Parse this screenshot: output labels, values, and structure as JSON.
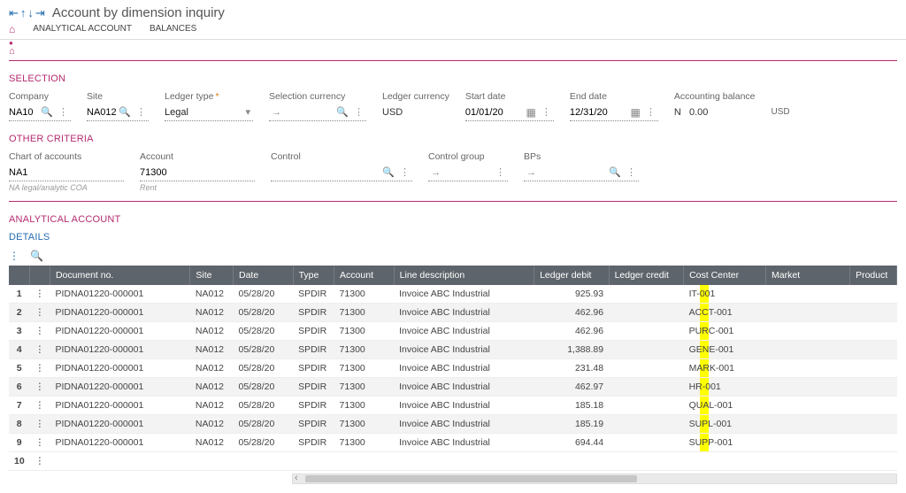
{
  "colors": {
    "accent": "#b52b6f",
    "link": "#246baf",
    "th_bg": "#5e646b"
  },
  "header": {
    "title": "Account by dimension inquiry"
  },
  "tabs": {
    "t1": "ANALYTICAL ACCOUNT",
    "t2": "BALANCES"
  },
  "selection": {
    "heading": "SELECTION",
    "company_label": "Company",
    "company": "NA10",
    "site_label": "Site",
    "site": "NA012",
    "ledger_type_label": "Ledger type",
    "ledger_type": "Legal",
    "sel_currency_label": "Selection currency",
    "sel_currency": "",
    "ledger_currency_label": "Ledger currency",
    "ledger_currency": "USD",
    "start_label": "Start date",
    "start": "01/01/20",
    "end_label": "End date",
    "end": "12/31/20",
    "accbal_label": "Accounting balance",
    "accbal_flag": "N",
    "accbal_val": "0.00",
    "accbal_cur": "USD"
  },
  "other": {
    "heading": "OTHER CRITERIA",
    "coa_label": "Chart of accounts",
    "coa": "NA1",
    "coa_sub": "NA legal/analytic COA",
    "acct_label": "Account",
    "acct": "71300",
    "acct_sub": "Rent",
    "control_label": "Control",
    "control": "",
    "cgroup_label": "Control group",
    "cgroup": "",
    "bps_label": "BPs",
    "bps": ""
  },
  "analytical": {
    "heading": "ANALYTICAL ACCOUNT"
  },
  "details": {
    "heading": "DETAILS",
    "cols": {
      "doc": "Document no.",
      "site": "Site",
      "date": "Date",
      "type": "Type",
      "acct": "Account",
      "desc": "Line description",
      "debit": "Ledger debit",
      "credit": "Ledger credit",
      "cc": "Cost Center",
      "market": "Market",
      "product": "Product"
    },
    "rows": [
      {
        "n": "1",
        "doc": "PIDNA01220-000001",
        "site": "NA012",
        "date": "05/28/20",
        "type": "SPDIR",
        "acct": "71300",
        "desc": "Invoice ABC Industrial",
        "debit": "925.93",
        "credit": "",
        "cc": "IT-001",
        "market": "",
        "product": ""
      },
      {
        "n": "2",
        "doc": "PIDNA01220-000001",
        "site": "NA012",
        "date": "05/28/20",
        "type": "SPDIR",
        "acct": "71300",
        "desc": "Invoice ABC Industrial",
        "debit": "462.96",
        "credit": "",
        "cc": "ACCT-001",
        "market": "",
        "product": ""
      },
      {
        "n": "3",
        "doc": "PIDNA01220-000001",
        "site": "NA012",
        "date": "05/28/20",
        "type": "SPDIR",
        "acct": "71300",
        "desc": "Invoice ABC Industrial",
        "debit": "462.96",
        "credit": "",
        "cc": "PURC-001",
        "market": "",
        "product": ""
      },
      {
        "n": "4",
        "doc": "PIDNA01220-000001",
        "site": "NA012",
        "date": "05/28/20",
        "type": "SPDIR",
        "acct": "71300",
        "desc": "Invoice ABC Industrial",
        "debit": "1,388.89",
        "credit": "",
        "cc": "GENE-001",
        "market": "",
        "product": ""
      },
      {
        "n": "5",
        "doc": "PIDNA01220-000001",
        "site": "NA012",
        "date": "05/28/20",
        "type": "SPDIR",
        "acct": "71300",
        "desc": "Invoice ABC Industrial",
        "debit": "231.48",
        "credit": "",
        "cc": "MARK-001",
        "market": "",
        "product": ""
      },
      {
        "n": "6",
        "doc": "PIDNA01220-000001",
        "site": "NA012",
        "date": "05/28/20",
        "type": "SPDIR",
        "acct": "71300",
        "desc": "Invoice ABC Industrial",
        "debit": "462.97",
        "credit": "",
        "cc": "HR-001",
        "market": "",
        "product": ""
      },
      {
        "n": "7",
        "doc": "PIDNA01220-000001",
        "site": "NA012",
        "date": "05/28/20",
        "type": "SPDIR",
        "acct": "71300",
        "desc": "Invoice ABC Industrial",
        "debit": "185.18",
        "credit": "",
        "cc": "QUAL-001",
        "market": "",
        "product": ""
      },
      {
        "n": "8",
        "doc": "PIDNA01220-000001",
        "site": "NA012",
        "date": "05/28/20",
        "type": "SPDIR",
        "acct": "71300",
        "desc": "Invoice ABC Industrial",
        "debit": "185.19",
        "credit": "",
        "cc": "SUPL-001",
        "market": "",
        "product": ""
      },
      {
        "n": "9",
        "doc": "PIDNA01220-000001",
        "site": "NA012",
        "date": "05/28/20",
        "type": "SPDIR",
        "acct": "71300",
        "desc": "Invoice ABC Industrial",
        "debit": "694.44",
        "credit": "",
        "cc": "SUPP-001",
        "market": "",
        "product": ""
      }
    ],
    "extra_row": "10"
  }
}
